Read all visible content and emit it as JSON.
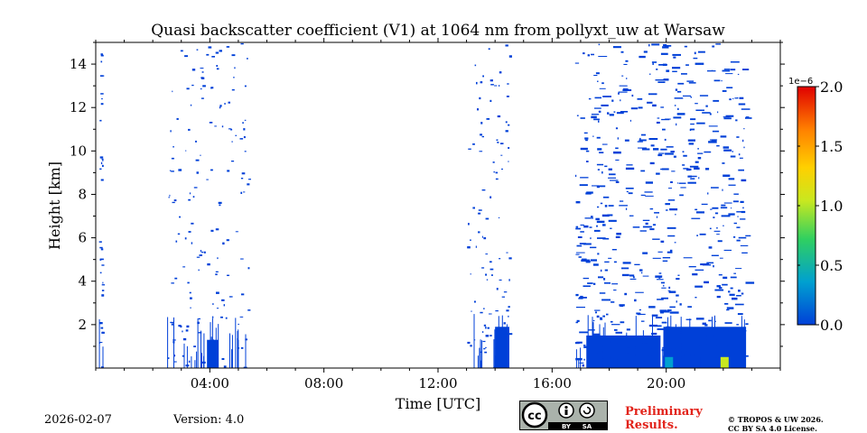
{
  "page": {
    "title": "Quasi backscatter coefficient (V1) at 1064 nm from pollyxt_uw at Warsaw",
    "date": "2026-02-07",
    "version": "Version: 4.0",
    "preliminary_line1": "Preliminary",
    "preliminary_line2": "Results.",
    "copyright_line1": "© TROPOS & UW 2026.",
    "copyright_line2": "CC BY SA 4.0 License.",
    "badge": {
      "cc": "cc",
      "by": "BY",
      "sa": "SA"
    }
  },
  "chart_data": {
    "type": "heatmap",
    "title": "Quasi backscatter coefficient (V1) at 1064 nm from pollyxt_uw at Warsaw",
    "xlabel": "Time [UTC]",
    "ylabel": "Height [km]",
    "xlim_hours": [
      0,
      24
    ],
    "ylim_km": [
      0,
      15
    ],
    "x_ticks": [
      {
        "h": 4,
        "label": "04:00"
      },
      {
        "h": 8,
        "label": "08:00"
      },
      {
        "h": 12,
        "label": "12:00"
      },
      {
        "h": 16,
        "label": "16:00"
      },
      {
        "h": 20,
        "label": "20:00"
      }
    ],
    "y_ticks": [
      {
        "v": 2,
        "label": "2"
      },
      {
        "v": 4,
        "label": "4"
      },
      {
        "v": 6,
        "label": "6"
      },
      {
        "v": 8,
        "label": "8"
      },
      {
        "v": 10,
        "label": "10"
      },
      {
        "v": 12,
        "label": "12"
      },
      {
        "v": 14,
        "label": "14"
      }
    ],
    "colorbar": {
      "min": 0.0,
      "max": 2.0,
      "multiplier": "1e−6",
      "ticks": [
        {
          "v": 0.0,
          "label": "0.0"
        },
        {
          "v": 0.5,
          "label": "0.5"
        },
        {
          "v": 1.0,
          "label": "1.0"
        },
        {
          "v": 1.5,
          "label": "1.5"
        },
        {
          "v": 2.0,
          "label": "2.0"
        }
      ],
      "colors": [
        "#0040d8",
        "#00a0d0",
        "#30d060",
        "#c8e820",
        "#ffd000",
        "#ff8000",
        "#e00000"
      ]
    },
    "measurement_periods": [
      {
        "start": 0.1,
        "end": 0.25,
        "max_height_km": 15,
        "density": 0.15
      },
      {
        "start": 2.5,
        "end": 5.4,
        "max_height_km": 15,
        "density": 0.25
      },
      {
        "start": 13.0,
        "end": 14.5,
        "max_height_km": 15,
        "density": 0.3
      },
      {
        "start": 16.8,
        "end": 22.8,
        "max_height_km": 15,
        "density": 0.55
      }
    ],
    "dense_low_layers": [
      {
        "start": 3.9,
        "end": 4.3,
        "top_km": 1.3,
        "value": 0.1
      },
      {
        "start": 14.0,
        "end": 14.5,
        "top_km": 1.9,
        "value": 0.1
      },
      {
        "start": 17.2,
        "end": 19.8,
        "top_km": 1.5,
        "value": 0.1
      },
      {
        "start": 19.9,
        "end": 22.8,
        "top_km": 1.9,
        "value": 0.1
      }
    ],
    "features": [
      {
        "time": 20.05,
        "height_km": 0.3,
        "value": 0.4
      },
      {
        "time": 22.0,
        "height_km": 0.3,
        "value": 1.0
      }
    ]
  }
}
